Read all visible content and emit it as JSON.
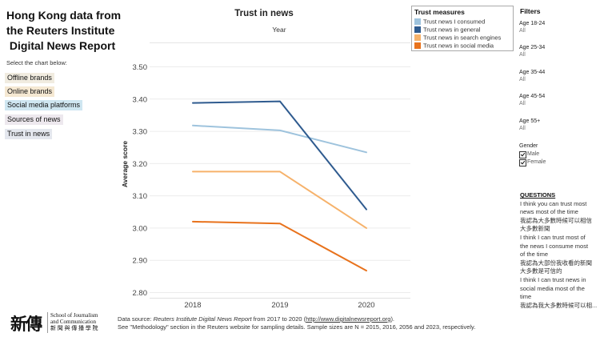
{
  "page": {
    "title_lines": [
      "Hong Kong data from",
      "the Reuters Institute",
      " Digital News Report"
    ],
    "select_hint": "Select the chart below:"
  },
  "nav": [
    {
      "label": "Offline brands",
      "color": "#f1ece0"
    },
    {
      "label": "Online brands",
      "color": "#f5e8d2"
    },
    {
      "label": "Social media platforms",
      "color": "#cfe6f1"
    },
    {
      "label": "Sources of news",
      "color": "#ede8ee"
    },
    {
      "label": "Trust in news",
      "color": "#e4e7ee"
    }
  ],
  "legend": {
    "title": "Trust measures",
    "items": [
      {
        "label": "Trust news I consumed",
        "color": "#9ec3dd"
      },
      {
        "label": "Trust news in general",
        "color": "#2f5b8f"
      },
      {
        "label": "Trust news in search engines",
        "color": "#f6b26b"
      },
      {
        "label": "Trust news in social media",
        "color": "#e8721c"
      }
    ]
  },
  "filters": {
    "title": "Filters",
    "groups": [
      {
        "label": "Age 18-24",
        "value": "All"
      },
      {
        "label": "Age 25-34",
        "value": "All"
      },
      {
        "label": "Age 35-44",
        "value": "All"
      },
      {
        "label": "Age 45-54",
        "value": "All"
      },
      {
        "label": "Age 55+",
        "value": "All"
      }
    ],
    "gender": {
      "label": "Gender",
      "options": [
        "Male",
        "Female"
      ]
    }
  },
  "questions": {
    "title": "QUESTIONS",
    "lines": [
      "I think you can trust most",
      "news most of the time",
      "我認為大多數時候可以相信",
      "大多數新聞",
      "I think I can trust most of",
      "the news I consume most",
      "of the time",
      "我認為大部份我收看的新聞",
      "大多數是可信的",
      "I think I can trust news in",
      "social media most of the",
      "time",
      "我認為我大多數時候可以相..."
    ]
  },
  "footer": {
    "line1_prefix": "Data source: ",
    "line1_italic": "Reuters Institute Digital News Report",
    "line1_mid": " from 2017 to 2020 (",
    "line1_link": "http://www.digitalnewsreport.org",
    "line1_suffix": ").",
    "line2": "See \"Methodology\" section in the Reuters website for sampling details. Sample sizes are N = 2015, 2016, 2056 and 2023, respectively."
  },
  "logo": {
    "mark": "新傳",
    "line1": "School of Journalism",
    "line2": "and Communication",
    "line3": "新 聞 與 傳 播 學 院"
  },
  "chart_data": {
    "type": "line",
    "title": "Trust in news",
    "column_header": "Year",
    "xlabel": "",
    "ylabel": "Average score",
    "categories": [
      "2018",
      "2019",
      "2020"
    ],
    "ylim": [
      2.8,
      3.5
    ],
    "yticks": [
      "2.80",
      "2.90",
      "3.00",
      "3.10",
      "3.20",
      "3.30",
      "3.40",
      "3.50"
    ],
    "series": [
      {
        "name": "Trust news I consumed",
        "color": "#9ec3dd",
        "values": [
          3.318,
          3.303,
          3.235
        ]
      },
      {
        "name": "Trust news in general",
        "color": "#2f5b8f",
        "values": [
          3.388,
          3.393,
          3.058
        ]
      },
      {
        "name": "Trust news in search engines",
        "color": "#f6b26b",
        "values": [
          3.175,
          3.175,
          3.0
        ]
      },
      {
        "name": "Trust news in social media",
        "color": "#e8721c",
        "values": [
          3.02,
          3.014,
          2.868
        ]
      }
    ]
  }
}
